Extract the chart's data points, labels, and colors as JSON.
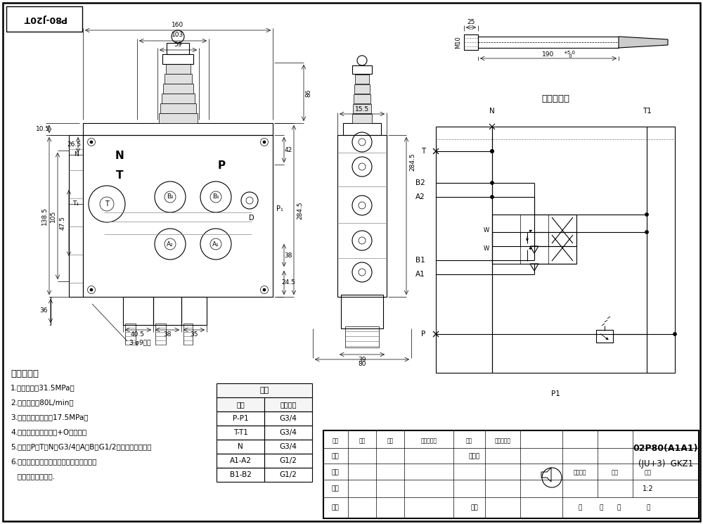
{
  "bg_color": "#ffffff",
  "tech_reqs": [
    "技术要求：",
    "1.公称压力：31.5MPa；",
    "2.公称流量：80L/min；",
    "3.溢流阀调定压力：17.5MPa；",
    "4.控制方式：弹簧复拉+O型阀杆；",
    "5.油口：P、T、N为G3/4；A、B为G1/2；均为平面密封；",
    "6.阀体表面磷化处理，安全阀及螺堵镀锌，",
    "   支架后盖为铝本色."
  ],
  "table_rows": [
    [
      "P-P1",
      "G3/4"
    ],
    [
      "T-T1",
      "G3/4"
    ],
    [
      "N",
      "G3/4"
    ],
    [
      "A1-A2",
      "G1/2"
    ],
    [
      "B1-B2",
      "G1/2"
    ]
  ],
  "model_line1": "02P80(A1A1)",
  "model_line2": "(JU+3)  GKZ1",
  "scale": "1:2",
  "drawing_id": "P80-J20T",
  "hydraulic_title": "液压原理图",
  "tb_labels_row1": [
    "标记",
    "处数",
    "分区",
    "更改文件号",
    "签名",
    "年、月、日"
  ],
  "tb_labels_col": [
    "设计",
    "校对",
    "审核",
    "工艺"
  ],
  "tb_labels_mid": [
    "标准化",
    "阶段标记",
    "重量",
    "比例"
  ],
  "tb_bottom": [
    "批准",
    "共",
    "张",
    "第",
    "张"
  ]
}
